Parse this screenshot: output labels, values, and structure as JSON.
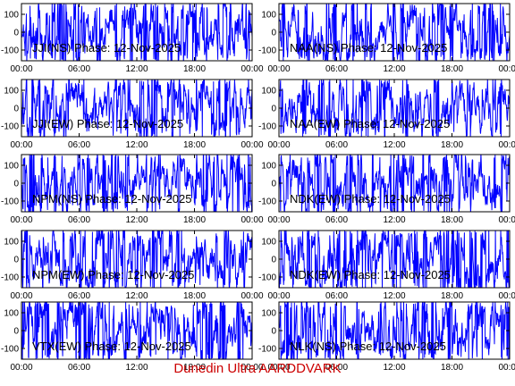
{
  "footer": "Dunedin Ultra AARDDVARK",
  "colors": {
    "trace": "#0000ff",
    "frame": "#000000",
    "footer": "#cc0000",
    "background": "#ffffff"
  },
  "chart_data": [
    {
      "type": "line",
      "title": "JJI(NS) Phase: 12-Nov-2025",
      "x": [
        "00:00",
        "06:00",
        "12:00",
        "18:00",
        "00:00"
      ],
      "yticks": [
        100,
        0,
        -100
      ],
      "ylim": [
        -160,
        160
      ]
    },
    {
      "type": "line",
      "title": "NAA(NS) Phase: 12-Nov-2025",
      "x": [
        "00:00",
        "06:00",
        "12:00",
        "18:00",
        "00:00"
      ],
      "yticks": [
        100,
        0,
        -100
      ],
      "ylim": [
        -160,
        160
      ]
    },
    {
      "type": "line",
      "title": "JJI(EW) Phase: 12-Nov-2025",
      "x": [
        "00:00",
        "06:00",
        "12:00",
        "18:00",
        "00:00"
      ],
      "yticks": [
        100,
        0,
        -100
      ],
      "ylim": [
        -160,
        160
      ]
    },
    {
      "type": "line",
      "title": "NAA(EW) Phase: 12-Nov-2025",
      "x": [
        "00:00",
        "06:00",
        "12:00",
        "18:00",
        "00:00"
      ],
      "yticks": [
        100,
        0,
        -100
      ],
      "ylim": [
        -160,
        160
      ]
    },
    {
      "type": "line",
      "title": "NPM(NS) Phase: 12-Nov-2025",
      "x": [
        "00:00",
        "06:00",
        "12:00",
        "18:00",
        "00:00"
      ],
      "yticks": [
        100,
        0,
        -100
      ],
      "ylim": [
        -160,
        160
      ]
    },
    {
      "type": "line",
      "title": "NDK(EW) Phase: 12-Nov-2025",
      "x": [
        "00:00",
        "06:00",
        "12:00",
        "18:00",
        "00:00"
      ],
      "yticks": [
        100,
        0,
        -100
      ],
      "ylim": [
        -160,
        160
      ]
    },
    {
      "type": "line",
      "title": "NPM(EW) Phase: 12-Nov-2025",
      "x": [
        "00:00",
        "06:00",
        "12:00",
        "18:00",
        "00:00"
      ],
      "yticks": [
        100,
        0,
        -100
      ],
      "ylim": [
        -160,
        160
      ]
    },
    {
      "type": "line",
      "title": "NDK(EW) Phase: 12-Nov-2025",
      "x": [
        "00:00",
        "06:00",
        "12:00",
        "18:00",
        "00:00"
      ],
      "yticks": [
        100,
        0,
        -100
      ],
      "ylim": [
        -160,
        160
      ]
    },
    {
      "type": "line",
      "title": "VTX(EW) Phase: 12-Nov-2025",
      "x": [
        "00:00",
        "06:00",
        "12:00",
        "18:00",
        "00:00"
      ],
      "yticks": [
        100,
        0,
        -100
      ],
      "ylim": [
        -160,
        160
      ]
    },
    {
      "type": "line",
      "title": "NLK(NS) Phase: 12-Nov-2025",
      "x": [
        "00:00",
        "06:00",
        "12:00",
        "18:00",
        "00:00"
      ],
      "yticks": [
        100,
        0,
        -100
      ],
      "ylim": [
        -160,
        160
      ]
    }
  ]
}
